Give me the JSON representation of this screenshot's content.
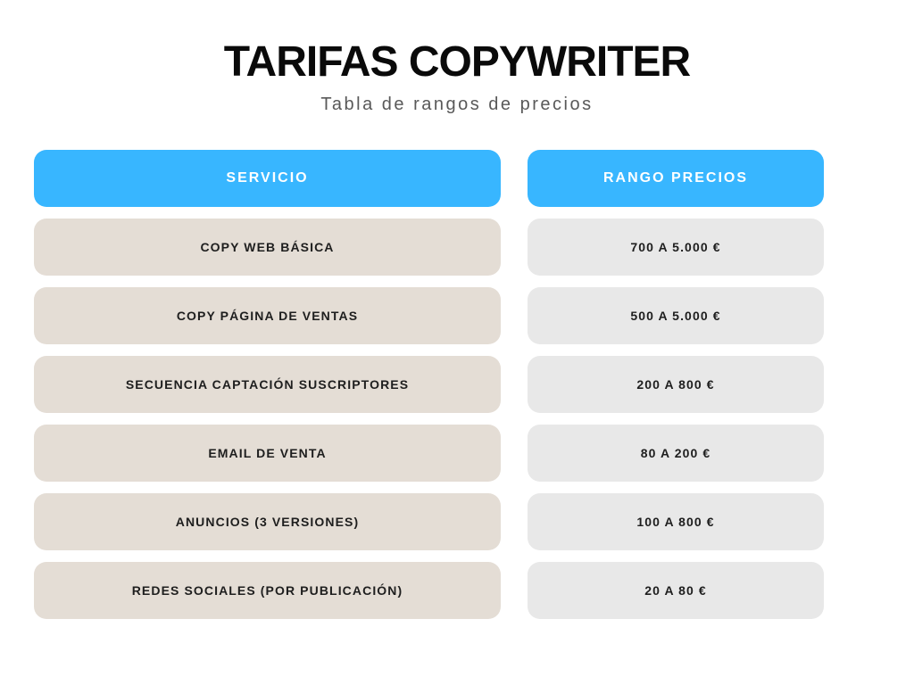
{
  "header": {
    "title": "TARIFAS COPYWRITER",
    "subtitle": "Tabla de rangos de precios"
  },
  "table": {
    "columns": [
      {
        "label": "SERVICIO"
      },
      {
        "label": "RANGO PRECIOS"
      }
    ],
    "rows": [
      {
        "service": "COPY WEB BÁSICA",
        "price": "700 A 5.000 €"
      },
      {
        "service": "COPY PÁGINA DE VENTAS",
        "price": "500 A 5.000 €"
      },
      {
        "service": "SECUENCIA CAPTACIÓN SUSCRIPTORES",
        "price": "200 A 800 €"
      },
      {
        "service": "EMAIL DE VENTA",
        "price": "80 A 200 €"
      },
      {
        "service": "ANUNCIOS (3 VERSIONES)",
        "price": "100 A 800 €"
      },
      {
        "service": "REDES SOCIALES (POR PUBLICACIÓN)",
        "price": "20 A 80 €"
      }
    ]
  },
  "colors": {
    "header_bg": "#38B6FF",
    "header_text": "#FFFFFF",
    "service_bg": "#E4DDD5",
    "price_bg": "#E8E8E8",
    "row_text": "#1E1E1E",
    "title_color": "#0A0A0A",
    "subtitle_color": "#595959",
    "page_bg": "#FFFFFF"
  }
}
